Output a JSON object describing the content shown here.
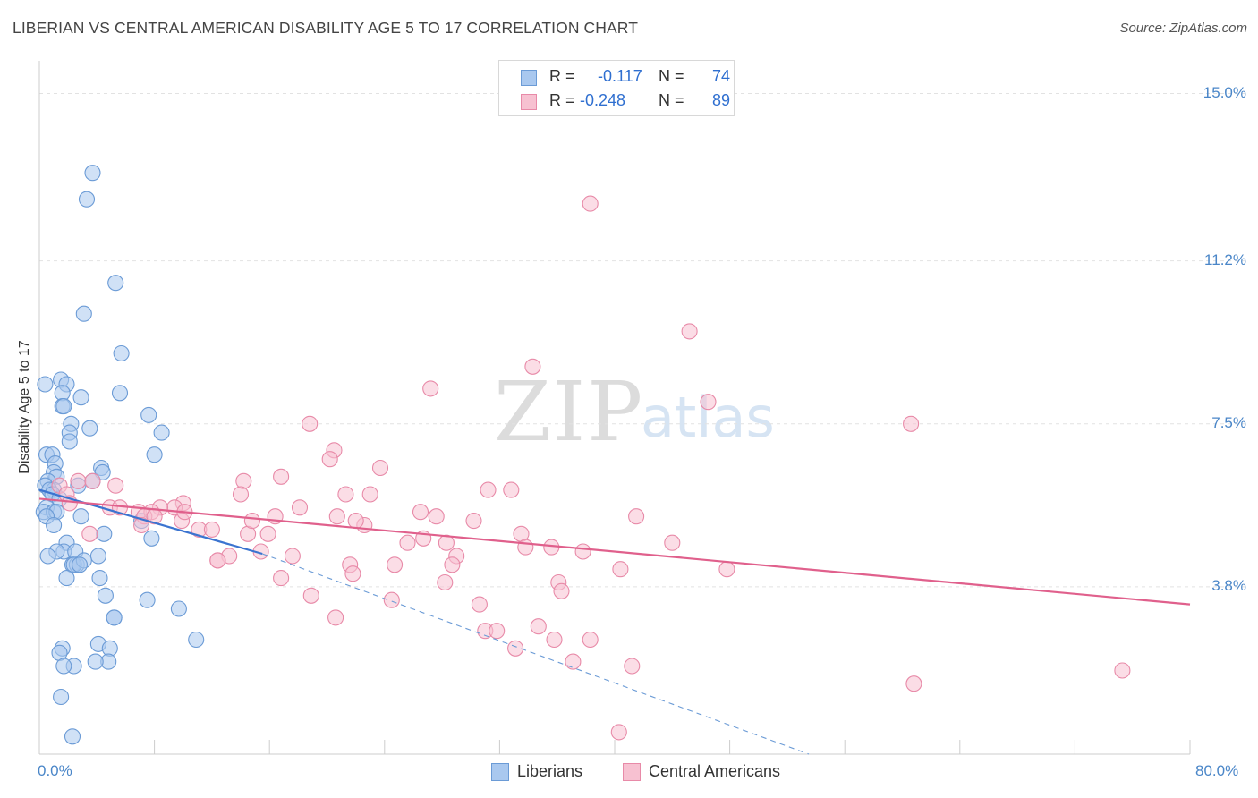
{
  "title": "LIBERIAN VS CENTRAL AMERICAN DISABILITY AGE 5 TO 17 CORRELATION CHART",
  "source": "Source: ZipAtlas.com",
  "watermark": {
    "zip": "ZIP",
    "atlas": "atlas"
  },
  "stats": [
    {
      "r_label": "R = ",
      "r_value": "-0.117",
      "n_label": "N = ",
      "n_value": "74",
      "color": "#a9c8ef",
      "border": "#6b9bd6"
    },
    {
      "r_label": "R = ",
      "r_value": "-0.248",
      "n_label": "N = ",
      "n_value": "89",
      "color": "#f7c1d1",
      "border": "#e88aa8"
    }
  ],
  "legend": [
    {
      "label": "Liberians",
      "color": "#a9c8ef",
      "border": "#6b9bd6"
    },
    {
      "label": "Central Americans",
      "color": "#f7c1d1",
      "border": "#e88aa8"
    }
  ],
  "chart_data": {
    "type": "scatter",
    "title": "LIBERIAN VS CENTRAL AMERICAN DISABILITY AGE 5 TO 17 CORRELATION CHART",
    "xlabel": "",
    "ylabel": "Disability Age 5 to 17",
    "xlim": [
      0,
      80
    ],
    "ylim": [
      0,
      15.6
    ],
    "x_tick_labels": [
      "0.0%",
      "80.0%"
    ],
    "y_ticks": [
      3.8,
      7.5,
      11.2,
      15.0
    ],
    "y_tick_labels": [
      "3.8%",
      "7.5%",
      "11.2%",
      "15.0%"
    ],
    "grid": true,
    "legend_position": "bottom",
    "series": [
      {
        "name": "Liberians",
        "color": "#6b9bd6",
        "fill": "#a9c8ef",
        "trend": {
          "x": [
            0,
            15.5
          ],
          "y": [
            6.0,
            4.55
          ],
          "extend_to": [
            53.5,
            0
          ]
        },
        "points": [
          [
            3.7,
            13.2
          ],
          [
            3.3,
            12.6
          ],
          [
            5.3,
            10.7
          ],
          [
            3.1,
            10.0
          ],
          [
            5.7,
            9.1
          ],
          [
            0.4,
            8.4
          ],
          [
            1.5,
            8.5
          ],
          [
            1.9,
            8.4
          ],
          [
            1.6,
            8.2
          ],
          [
            2.9,
            8.1
          ],
          [
            1.6,
            7.9
          ],
          [
            1.7,
            7.9
          ],
          [
            5.6,
            8.2
          ],
          [
            7.6,
            7.7
          ],
          [
            2.2,
            7.5
          ],
          [
            3.5,
            7.4
          ],
          [
            8.5,
            7.3
          ],
          [
            2.1,
            7.3
          ],
          [
            2.1,
            7.1
          ],
          [
            0.5,
            6.8
          ],
          [
            0.9,
            6.8
          ],
          [
            8.0,
            6.8
          ],
          [
            1.1,
            6.6
          ],
          [
            4.3,
            6.5
          ],
          [
            4.4,
            6.4
          ],
          [
            1.0,
            6.4
          ],
          [
            1.2,
            6.3
          ],
          [
            3.7,
            6.2
          ],
          [
            0.6,
            6.2
          ],
          [
            0.4,
            6.1
          ],
          [
            2.7,
            6.1
          ],
          [
            1.0,
            6.0
          ],
          [
            0.7,
            6.0
          ],
          [
            0.9,
            5.9
          ],
          [
            1.4,
            5.8
          ],
          [
            0.5,
            5.6
          ],
          [
            0.3,
            5.5
          ],
          [
            1.0,
            5.5
          ],
          [
            1.2,
            5.5
          ],
          [
            0.5,
            5.4
          ],
          [
            2.9,
            5.4
          ],
          [
            7.1,
            5.3
          ],
          [
            1.0,
            5.2
          ],
          [
            4.5,
            5.0
          ],
          [
            7.8,
            4.9
          ],
          [
            1.9,
            4.8
          ],
          [
            1.7,
            4.6
          ],
          [
            2.5,
            4.6
          ],
          [
            1.2,
            4.6
          ],
          [
            0.6,
            4.5
          ],
          [
            4.1,
            4.5
          ],
          [
            2.3,
            4.3
          ],
          [
            2.6,
            4.3
          ],
          [
            2.4,
            4.3
          ],
          [
            3.1,
            4.4
          ],
          [
            2.8,
            4.3
          ],
          [
            1.9,
            4.0
          ],
          [
            4.2,
            4.0
          ],
          [
            4.6,
            3.6
          ],
          [
            7.5,
            3.5
          ],
          [
            9.7,
            3.3
          ],
          [
            5.2,
            3.1
          ],
          [
            5.2,
            3.1
          ],
          [
            10.9,
            2.6
          ],
          [
            4.1,
            2.5
          ],
          [
            1.6,
            2.4
          ],
          [
            4.9,
            2.4
          ],
          [
            1.4,
            2.3
          ],
          [
            4.8,
            2.1
          ],
          [
            2.4,
            2.0
          ],
          [
            3.9,
            2.1
          ],
          [
            1.5,
            1.3
          ],
          [
            2.3,
            0.4
          ],
          [
            1.7,
            2.0
          ]
        ]
      },
      {
        "name": "Central Americans",
        "color": "#e88aa8",
        "fill": "#f7c1d1",
        "trend": {
          "x": [
            0,
            80
          ],
          "y": [
            5.8,
            3.4
          ]
        },
        "points": [
          [
            38.3,
            12.5
          ],
          [
            45.2,
            9.6
          ],
          [
            34.3,
            8.8
          ],
          [
            27.2,
            8.3
          ],
          [
            46.5,
            8.0
          ],
          [
            60.6,
            7.5
          ],
          [
            18.8,
            7.5
          ],
          [
            20.5,
            6.9
          ],
          [
            20.2,
            6.7
          ],
          [
            23.7,
            6.5
          ],
          [
            16.8,
            6.3
          ],
          [
            14.2,
            6.2
          ],
          [
            1.4,
            6.1
          ],
          [
            2.7,
            6.2
          ],
          [
            5.3,
            6.1
          ],
          [
            3.7,
            6.2
          ],
          [
            31.2,
            6.0
          ],
          [
            32.8,
            6.0
          ],
          [
            14.0,
            5.9
          ],
          [
            23.0,
            5.9
          ],
          [
            21.3,
            5.9
          ],
          [
            1.9,
            5.9
          ],
          [
            2.1,
            5.7
          ],
          [
            10.0,
            5.7
          ],
          [
            9.4,
            5.6
          ],
          [
            8.4,
            5.6
          ],
          [
            6.9,
            5.5
          ],
          [
            4.9,
            5.6
          ],
          [
            18.1,
            5.6
          ],
          [
            5.6,
            5.6
          ],
          [
            7.8,
            5.5
          ],
          [
            7.3,
            5.4
          ],
          [
            8.0,
            5.4
          ],
          [
            26.5,
            5.5
          ],
          [
            41.5,
            5.4
          ],
          [
            16.4,
            5.4
          ],
          [
            27.6,
            5.4
          ],
          [
            30.2,
            5.3
          ],
          [
            9.9,
            5.3
          ],
          [
            7.1,
            5.2
          ],
          [
            11.1,
            5.1
          ],
          [
            12.0,
            5.1
          ],
          [
            22.6,
            5.2
          ],
          [
            14.5,
            5.0
          ],
          [
            15.9,
            5.0
          ],
          [
            33.5,
            5.0
          ],
          [
            3.5,
            5.0
          ],
          [
            28.3,
            4.8
          ],
          [
            25.6,
            4.8
          ],
          [
            44.0,
            4.8
          ],
          [
            33.8,
            4.7
          ],
          [
            35.6,
            4.7
          ],
          [
            37.8,
            4.6
          ],
          [
            15.4,
            4.6
          ],
          [
            13.2,
            4.5
          ],
          [
            17.6,
            4.5
          ],
          [
            29.0,
            4.5
          ],
          [
            12.4,
            4.4
          ],
          [
            12.4,
            4.4
          ],
          [
            21.6,
            4.3
          ],
          [
            28.7,
            4.3
          ],
          [
            24.7,
            4.3
          ],
          [
            40.4,
            4.2
          ],
          [
            47.8,
            4.2
          ],
          [
            21.8,
            4.1
          ],
          [
            16.8,
            4.0
          ],
          [
            36.1,
            3.9
          ],
          [
            28.2,
            3.9
          ],
          [
            18.9,
            3.6
          ],
          [
            36.3,
            3.7
          ],
          [
            24.5,
            3.5
          ],
          [
            30.6,
            3.4
          ],
          [
            20.6,
            3.1
          ],
          [
            34.7,
            2.9
          ],
          [
            31.0,
            2.8
          ],
          [
            31.8,
            2.8
          ],
          [
            35.8,
            2.6
          ],
          [
            38.3,
            2.6
          ],
          [
            33.1,
            2.4
          ],
          [
            37.1,
            2.1
          ],
          [
            41.2,
            2.0
          ],
          [
            75.3,
            1.9
          ],
          [
            60.8,
            1.6
          ],
          [
            40.3,
            0.5
          ],
          [
            10.1,
            5.5
          ],
          [
            26.7,
            4.9
          ],
          [
            22.0,
            5.3
          ],
          [
            14.8,
            5.3
          ],
          [
            20.7,
            5.4
          ]
        ]
      }
    ]
  }
}
